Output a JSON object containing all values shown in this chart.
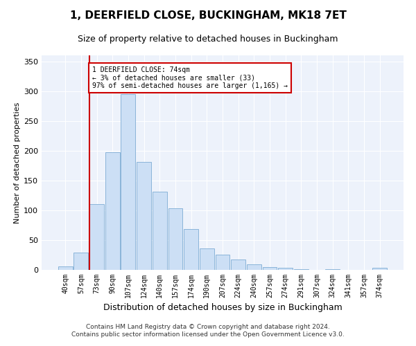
{
  "title": "1, DEERFIELD CLOSE, BUCKINGHAM, MK18 7ET",
  "subtitle": "Size of property relative to detached houses in Buckingham",
  "xlabel": "Distribution of detached houses by size in Buckingham",
  "ylabel": "Number of detached properties",
  "footer_line1": "Contains HM Land Registry data © Crown copyright and database right 2024.",
  "footer_line2": "Contains public sector information licensed under the Open Government Licence v3.0.",
  "categories": [
    "40sqm",
    "57sqm",
    "73sqm",
    "90sqm",
    "107sqm",
    "124sqm",
    "140sqm",
    "157sqm",
    "174sqm",
    "190sqm",
    "207sqm",
    "224sqm",
    "240sqm",
    "257sqm",
    "274sqm",
    "291sqm",
    "307sqm",
    "324sqm",
    "341sqm",
    "357sqm",
    "374sqm"
  ],
  "values": [
    6,
    29,
    110,
    198,
    295,
    181,
    131,
    103,
    68,
    36,
    26,
    17,
    9,
    5,
    4,
    1,
    0,
    1,
    0,
    0,
    4
  ],
  "bar_color": "#ccdff5",
  "bar_edge_color": "#8ab4d9",
  "subject_bin_index": 2,
  "subject_line_color": "#cc0000",
  "annotation_text_line1": "1 DEERFIELD CLOSE: 74sqm",
  "annotation_text_line2": "← 3% of detached houses are smaller (33)",
  "annotation_text_line3": "97% of semi-detached houses are larger (1,165) →",
  "annotation_box_color": "#cc0000",
  "ylim": [
    0,
    360
  ],
  "yticks": [
    0,
    50,
    100,
    150,
    200,
    250,
    300,
    350
  ],
  "bg_color": "#edf2fb",
  "grid_color": "#ffffff",
  "title_fontsize": 11,
  "subtitle_fontsize": 9,
  "ylabel_fontsize": 8,
  "xlabel_fontsize": 9,
  "tick_fontsize": 7,
  "footer_fontsize": 6.5
}
